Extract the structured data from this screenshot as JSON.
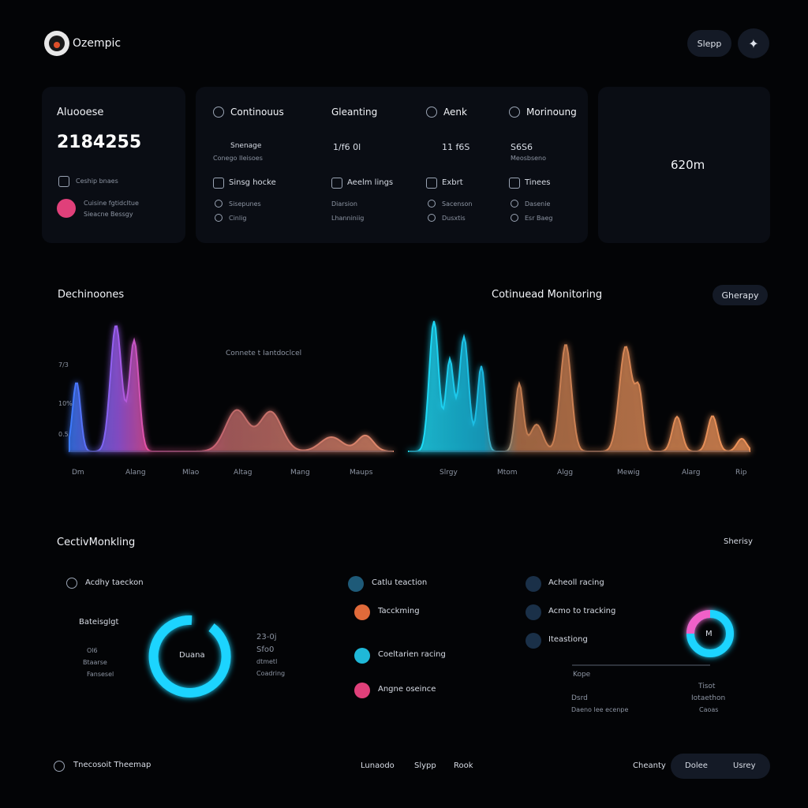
{
  "header": {
    "brand": "Ozempic",
    "button": "Slepp"
  },
  "summary": {
    "title": "Aluooese",
    "value": "2184255",
    "items": [
      "Ceship bnaes",
      "Cuisine fgtidcltue",
      "Sieacne Bessgy"
    ]
  },
  "metrics": {
    "columns": [
      {
        "title": "Continouus",
        "value": "Snenage",
        "value_sub": "Conego Ileisoes",
        "row": "Sinsg hocke",
        "row_sub": [
          "Sisepunes",
          "Cinlig"
        ]
      },
      {
        "title": "Gleanting",
        "value": "1/f6 0l",
        "value_sub": "",
        "row": "Aeelm lings",
        "row_sub": [
          "Diarsion",
          "Lhanniniig"
        ]
      },
      {
        "title": "Aenk",
        "value": "11 f6S",
        "value_sub": "",
        "row": "Exbrt",
        "row_sub": [
          "Sacenson",
          "Dusxtis"
        ]
      },
      {
        "title": "Morinoung",
        "value": "S6S6",
        "value_sub": "Meosbseno",
        "row": "Tinees",
        "row_sub": [
          "Dasenie",
          "Esr Baeg"
        ]
      }
    ]
  },
  "gauge": {
    "label": "620m"
  },
  "charts": {
    "left_title": "Dechinoones",
    "right_title": "Cotinuead Monitoring",
    "button": "Gherapy",
    "annotation": "Connete t Iantdoclcel",
    "y_labels": [
      "7/3",
      "10%",
      "0.5"
    ],
    "left_x": [
      "Dm",
      "Alang",
      "Mlao",
      "Altag",
      "Mang",
      "Maups"
    ],
    "right_x": [
      "Slrgy",
      "Mtom",
      "Algg",
      "Mewig",
      "Alarg",
      "Rip"
    ]
  },
  "activity": {
    "title": "CectivMonkling",
    "link": "Sherisy",
    "left": {
      "heading": "Acdhy taeckon",
      "subheading": "Bateisglgt",
      "stats": [
        "Ol6",
        "Btaarse",
        "Fansesel"
      ],
      "ring_label": "Duana",
      "side": [
        "23-0j",
        "Sfo0",
        "dtmetl",
        "Coadring"
      ]
    },
    "middle": [
      "Catlu teaction",
      "Tacckming",
      "Coeltarien racing",
      "Angne oseince"
    ],
    "right": {
      "items": [
        "Acheoll racing",
        "Acmo to tracking",
        "Iteastiong"
      ],
      "donut_label": "M",
      "footer": [
        "Kope",
        "Dsrd",
        "Tisot",
        "Iotaethon",
        "Daeno lee ecenpe",
        "Caoas"
      ]
    }
  },
  "footer": {
    "title": "Tnecosoit Theemap",
    "links": [
      "Lunaodo",
      "Slypp",
      "Rook",
      "Cheanty",
      "Dolee",
      "Usrey"
    ]
  }
}
